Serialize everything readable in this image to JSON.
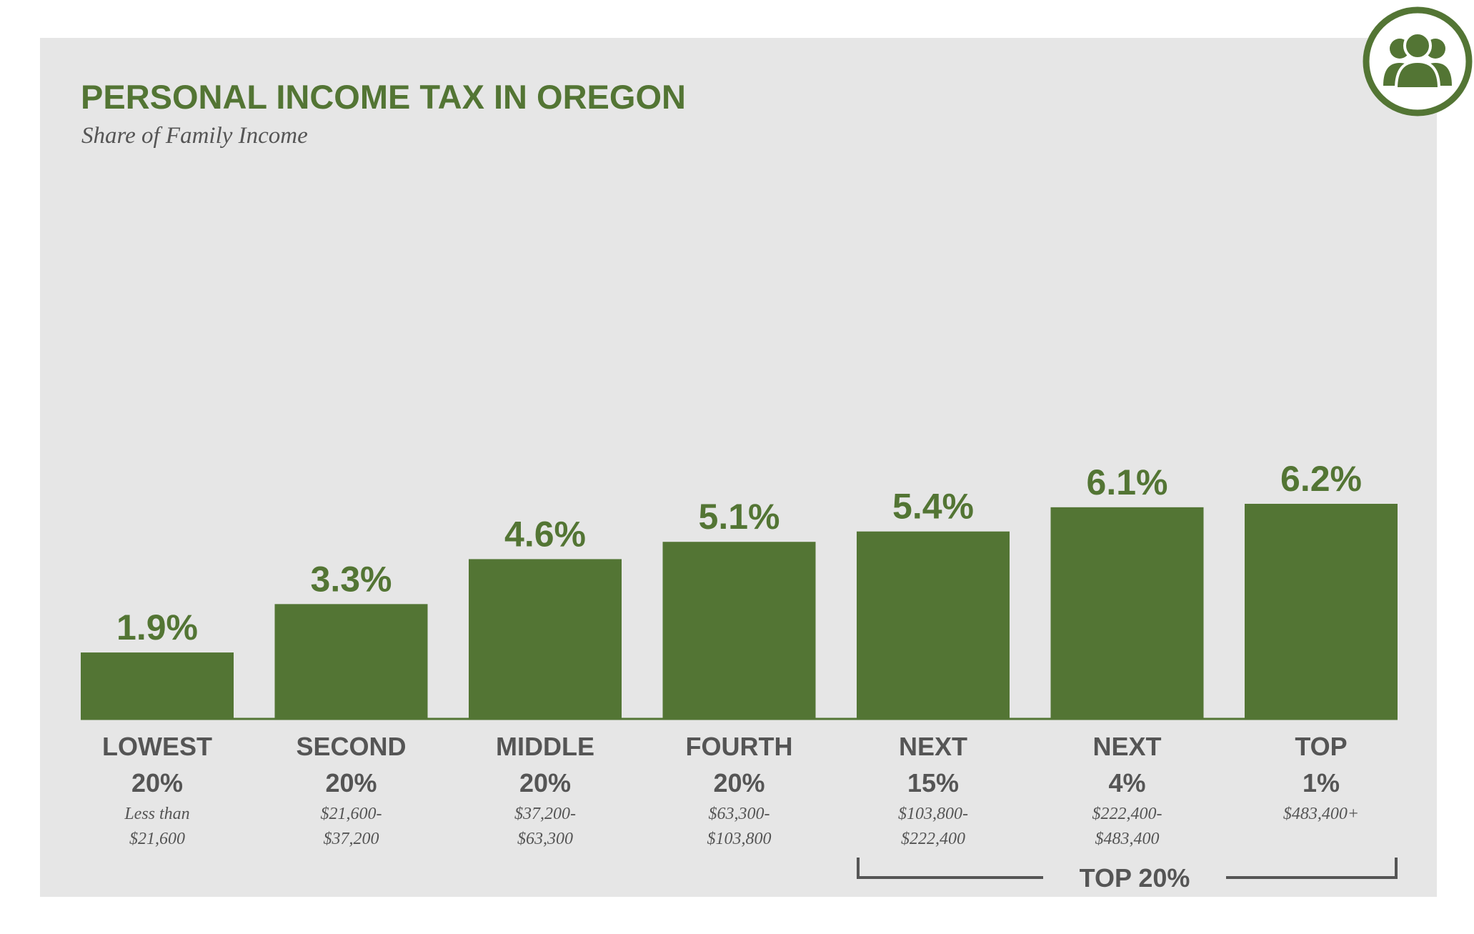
{
  "colors": {
    "accent": "#537534",
    "panel_background": "#e6e6e6",
    "text_gray": "#555555"
  },
  "logo": {
    "icon": "people-group-icon"
  },
  "chart_data": {
    "type": "bar",
    "title": "PERSONAL INCOME TAX IN OREGON",
    "subtitle": "Share of Family Income",
    "categories": [
      {
        "line1": "LOWEST",
        "line2": "20%",
        "range1": "Less than",
        "range2": "$21,600"
      },
      {
        "line1": "SECOND",
        "line2": "20%",
        "range1": "$21,600-",
        "range2": "$37,200"
      },
      {
        "line1": "MIDDLE",
        "line2": "20%",
        "range1": "$37,200-",
        "range2": "$63,300"
      },
      {
        "line1": "FOURTH",
        "line2": "20%",
        "range1": "$63,300-",
        "range2": "$103,800"
      },
      {
        "line1": "NEXT",
        "line2": "15%",
        "range1": "$103,800-",
        "range2": "$222,400"
      },
      {
        "line1": "NEXT",
        "line2": "4%",
        "range1": "$222,400-",
        "range2": "$483,400"
      },
      {
        "line1": "TOP",
        "line2": "1%",
        "range1": "$483,400+",
        "range2": ""
      }
    ],
    "values": [
      1.9,
      3.3,
      4.6,
      5.1,
      5.4,
      6.1,
      6.2
    ],
    "value_labels": [
      "1.9%",
      "3.3%",
      "4.6%",
      "5.1%",
      "5.4%",
      "6.1%",
      "6.2%"
    ],
    "ylim": [
      0,
      6.2
    ],
    "grid": false,
    "bracket": {
      "label": "TOP 20%",
      "from_category": 4,
      "to_category": 6
    }
  }
}
